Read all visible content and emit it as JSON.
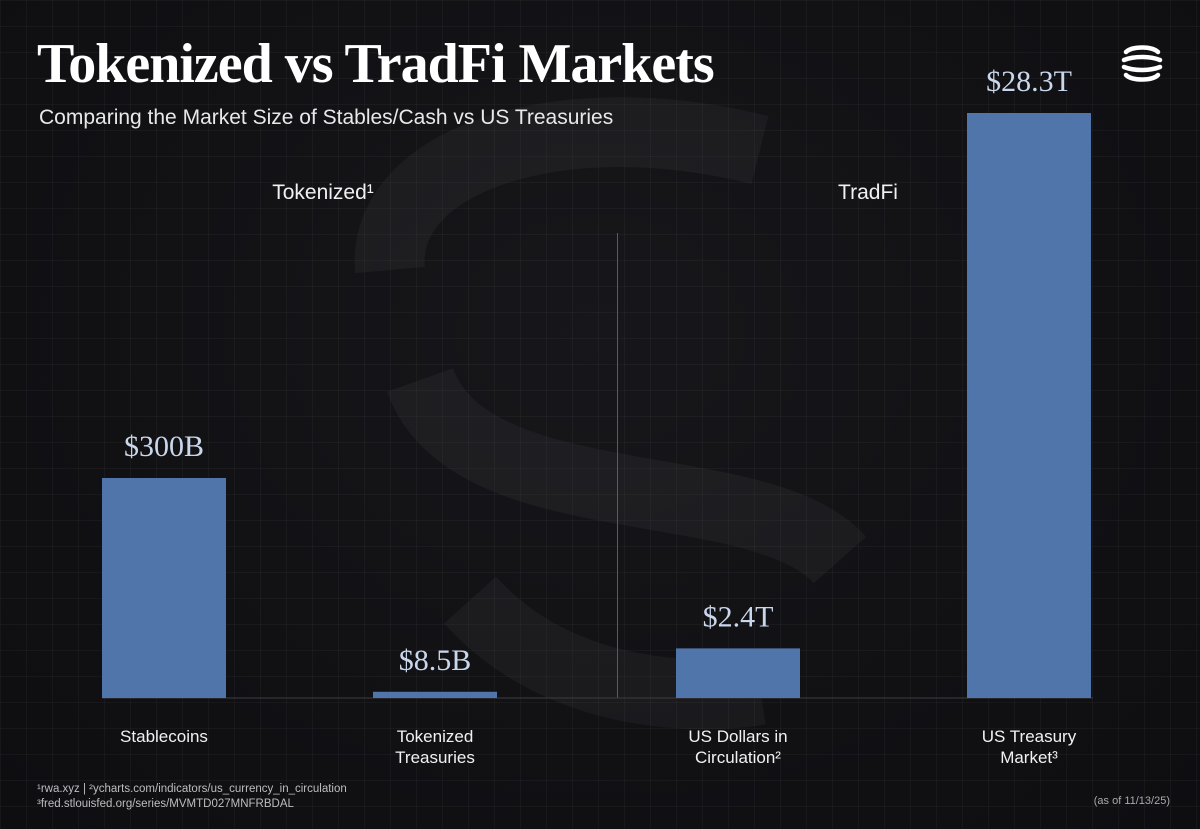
{
  "header": {
    "title": "Tokenized vs TradFi Markets",
    "subtitle": "Comparing the Market Size of Stables/Cash vs US Treasuries"
  },
  "groups": [
    {
      "label": "Tokenized¹"
    },
    {
      "label": "TradFi"
    }
  ],
  "chart_data": {
    "type": "bar",
    "categories": [
      [
        "Stablecoins"
      ],
      [
        "Tokenized",
        "Treasuries"
      ],
      [
        "US Dollars in",
        "Circulation²"
      ],
      [
        "US Treasury",
        "Market³"
      ]
    ],
    "values": [
      300,
      8.5,
      2400,
      28300
    ],
    "value_units": "billions USD",
    "data_labels": [
      "$300B",
      "$8.5B",
      "$2.4T",
      "$28.3T"
    ],
    "scale_note": "Tokenized and TradFi groups are drawn on separate scales",
    "group_scale_max": [
      300,
      28300
    ],
    "bar_color": "#4f75ab",
    "label_color": "#c9d7ec",
    "grid": false,
    "legend": "none"
  },
  "footer": {
    "sources_line1": "¹rwa.xyz | ²ycharts.com/indicators/us_currency_in_circulation",
    "sources_line2": "³fred.stlouisfed.org/series/MVMTD027MNFRBDAL",
    "as_of": "(as of 11/13/25)"
  },
  "colors": {
    "background": "#111114",
    "bar": "#4f75ab",
    "value_label": "#c9d7ec",
    "divider": "#5a5a60"
  }
}
